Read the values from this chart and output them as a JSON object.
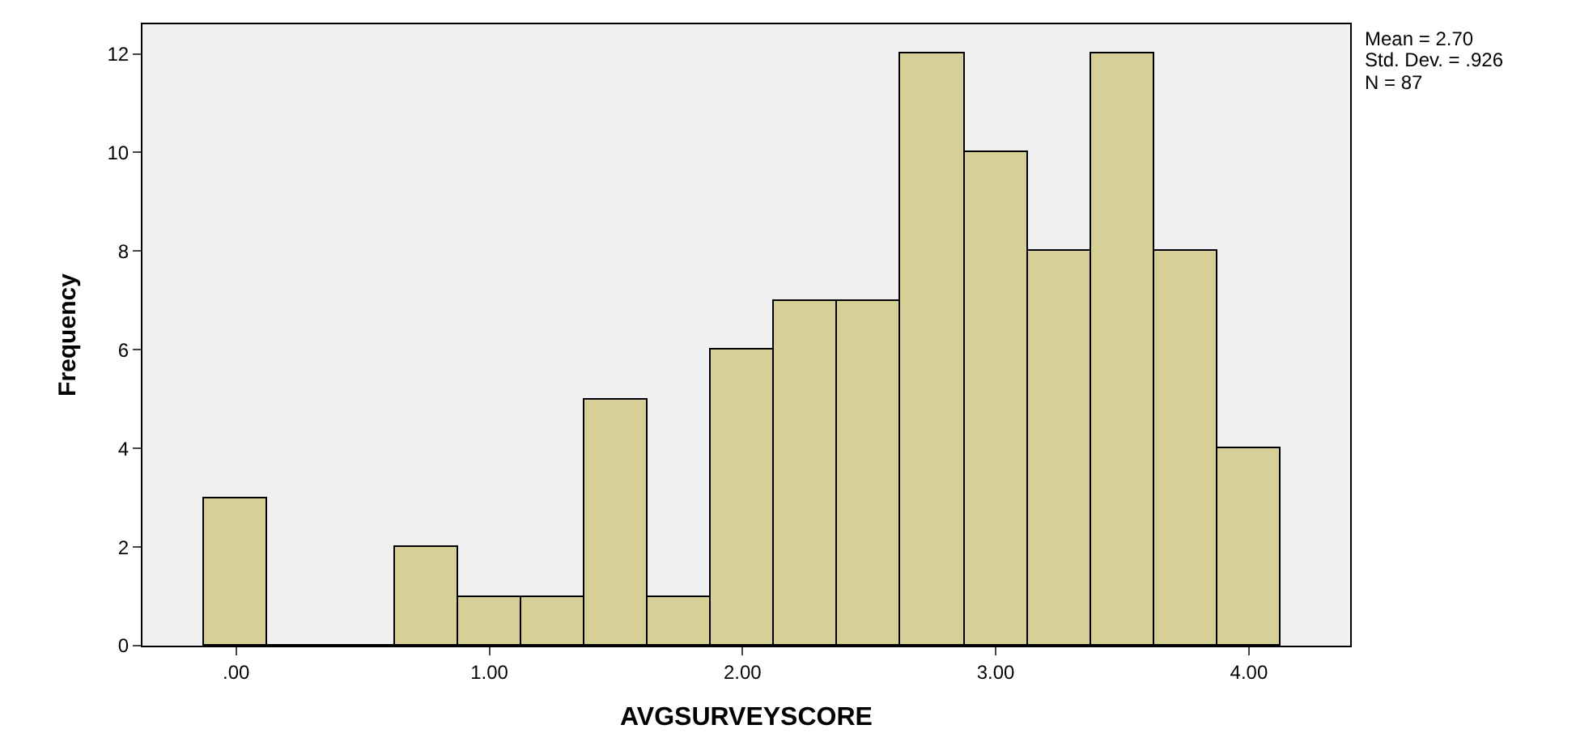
{
  "chart_data": {
    "type": "histogram",
    "xlabel": "AVGSURVEYSCORE",
    "ylabel": "Frequency",
    "bins": [
      -0.125,
      0.125,
      0.375,
      0.625,
      0.875,
      1.125,
      1.375,
      1.625,
      1.875,
      2.125,
      2.375,
      2.625,
      2.875,
      3.125,
      3.375,
      3.625,
      3.875,
      4.125
    ],
    "values": [
      3,
      0,
      0,
      2,
      1,
      1,
      5,
      1,
      6,
      7,
      7,
      12,
      10,
      8,
      12,
      8,
      4
    ],
    "color": "#d6cf98",
    "xlim": [
      -0.37,
      4.4
    ],
    "xticks": [
      {
        "value": 0,
        "label": ".00"
      },
      {
        "value": 1,
        "label": "1.00"
      },
      {
        "value": 2,
        "label": "2.00"
      },
      {
        "value": 3,
        "label": "3.00"
      },
      {
        "value": 4,
        "label": "4.00"
      }
    ],
    "ylim": [
      0,
      12.6
    ],
    "yticks": [
      0,
      2,
      4,
      6,
      8,
      10,
      12
    ],
    "grid": false,
    "legend": false,
    "annotations": [
      "Mean = 2.70",
      "Std. Dev. = .926",
      "N = 87"
    ]
  }
}
